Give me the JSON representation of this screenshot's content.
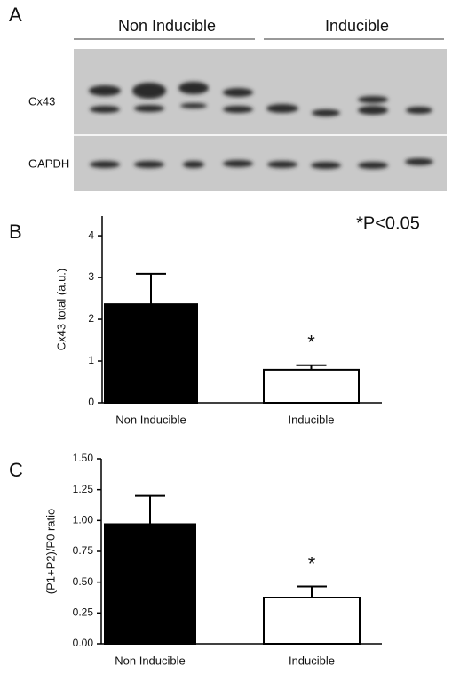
{
  "blot": {
    "panel": "A",
    "groups": [
      "Non Inducible",
      "Inducible"
    ],
    "rows": [
      "Cx43",
      "GAPDH"
    ]
  },
  "chart_data": [
    {
      "type": "bar",
      "panel": "B",
      "y_label": "Cx43 total (a.u.)",
      "annotation": "*P<0.05",
      "significance": "*",
      "categories": [
        "Non Inducible",
        "Inducible"
      ],
      "values": [
        2.36,
        0.79
      ],
      "errors": [
        0.73,
        0.11
      ],
      "colors": [
        "#000000",
        "#ffffff"
      ],
      "ylim": [
        0,
        4.47
      ],
      "yticks": [
        0,
        1,
        2,
        3,
        4
      ]
    },
    {
      "type": "bar",
      "panel": "C",
      "y_label": "(P1+P2)/P0 ratio",
      "significance": "*",
      "categories": [
        "Non Inducible",
        "Inducible"
      ],
      "values": [
        0.97,
        0.375
      ],
      "errors": [
        0.23,
        0.09
      ],
      "colors": [
        "#000000",
        "#ffffff"
      ],
      "ylim": [
        0,
        1.5
      ],
      "yticks": [
        {
          "value": 0,
          "label": "0.00"
        },
        {
          "value": 0.25,
          "label": "0.25"
        },
        {
          "value": 0.5,
          "label": "0.50"
        },
        {
          "value": 0.75,
          "label": "0.75"
        },
        {
          "value": 1,
          "label": "1.00"
        },
        {
          "value": 1.25,
          "label": "1.25"
        },
        {
          "value": 1.5,
          "label": "1.50"
        }
      ]
    }
  ]
}
